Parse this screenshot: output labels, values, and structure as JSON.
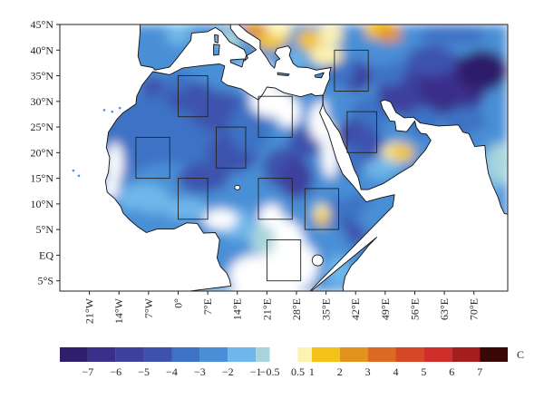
{
  "chart_data": {
    "type": "heatmap",
    "title": "",
    "lon_range": [
      -28,
      78
    ],
    "lat_range": [
      -7,
      45
    ],
    "y_ticks": [
      {
        "value": 45,
        "label": "45°N"
      },
      {
        "value": 40,
        "label": "40°N"
      },
      {
        "value": 35,
        "label": "35°N"
      },
      {
        "value": 30,
        "label": "30°N"
      },
      {
        "value": 25,
        "label": "25°N"
      },
      {
        "value": 20,
        "label": "20°N"
      },
      {
        "value": 15,
        "label": "15°N"
      },
      {
        "value": 10,
        "label": "10°N"
      },
      {
        "value": 5,
        "label": "5°N"
      },
      {
        "value": 0,
        "label": "EQ"
      },
      {
        "value": -5,
        "label": "5°S"
      }
    ],
    "x_ticks": [
      {
        "value": -21,
        "label": "21°W"
      },
      {
        "value": -14,
        "label": "14°W"
      },
      {
        "value": -7,
        "label": "7°W"
      },
      {
        "value": 0,
        "label": "0°"
      },
      {
        "value": 7,
        "label": "7°E"
      },
      {
        "value": 14,
        "label": "14°E"
      },
      {
        "value": 21,
        "label": "21°E"
      },
      {
        "value": 28,
        "label": "28°E"
      },
      {
        "value": 35,
        "label": "35°E"
      },
      {
        "value": 42,
        "label": "42°E"
      },
      {
        "value": 49,
        "label": "49°E"
      },
      {
        "value": 56,
        "label": "56°E"
      },
      {
        "value": 63,
        "label": "63°E"
      },
      {
        "value": 70,
        "label": "70°E"
      }
    ],
    "colorbar": {
      "unit": "C",
      "bins": [
        {
          "from": -8,
          "to": -7,
          "color": "#2f1e6b"
        },
        {
          "from": -7,
          "to": -6,
          "color": "#3a2f8a"
        },
        {
          "from": -6,
          "to": -5,
          "color": "#3e3f9e"
        },
        {
          "from": -5,
          "to": -4,
          "color": "#3d52ad"
        },
        {
          "from": -4,
          "to": -3,
          "color": "#3d72c4"
        },
        {
          "from": -3,
          "to": -2,
          "color": "#4a8fd6"
        },
        {
          "from": -2,
          "to": -1,
          "color": "#6fb7ea"
        },
        {
          "from": -1,
          "to": -0.5,
          "color": "#a8d5dd"
        },
        {
          "from": -0.5,
          "to": 0.5,
          "color": "#ffffff"
        },
        {
          "from": 0.5,
          "to": 1,
          "color": "#fdf3b0"
        },
        {
          "from": 1,
          "to": 2,
          "color": "#f2c21a"
        },
        {
          "from": 2,
          "to": 3,
          "color": "#e2931e"
        },
        {
          "from": 3,
          "to": 4,
          "color": "#dc6a22"
        },
        {
          "from": 4,
          "to": 5,
          "color": "#d44827"
        },
        {
          "from": 5,
          "to": 6,
          "color": "#cf2f2b"
        },
        {
          "from": 6,
          "to": 7,
          "color": "#a51d1d"
        },
        {
          "from": 7,
          "to": 8,
          "color": "#3a0808"
        }
      ],
      "labels": [
        {
          "value": -7,
          "label": "−7"
        },
        {
          "value": -6,
          "label": "−6"
        },
        {
          "value": -5,
          "label": "−5"
        },
        {
          "value": -4,
          "label": "−4"
        },
        {
          "value": -3,
          "label": "−3"
        },
        {
          "value": -2,
          "label": "−2"
        },
        {
          "value": -1,
          "label": "−1"
        },
        {
          "value": -0.5,
          "label": "−0.5"
        },
        {
          "value": 0.5,
          "label": "0.5"
        },
        {
          "value": 1,
          "label": "1"
        },
        {
          "value": 2,
          "label": "2"
        },
        {
          "value": 3,
          "label": "3"
        },
        {
          "value": 4,
          "label": "4"
        },
        {
          "value": 5,
          "label": "5"
        },
        {
          "value": 6,
          "label": "6"
        },
        {
          "value": 7,
          "label": "7"
        }
      ]
    },
    "study_boxes": [
      {
        "lon": [
          0,
          7
        ],
        "lat": [
          27,
          35
        ]
      },
      {
        "lon": [
          -10,
          -2
        ],
        "lat": [
          15,
          23
        ]
      },
      {
        "lon": [
          0,
          7
        ],
        "lat": [
          7,
          15
        ]
      },
      {
        "lon": [
          9,
          16
        ],
        "lat": [
          17,
          25
        ]
      },
      {
        "lon": [
          19,
          27
        ],
        "lat": [
          23,
          31
        ]
      },
      {
        "lon": [
          19,
          27
        ],
        "lat": [
          7,
          15
        ]
      },
      {
        "lon": [
          21,
          29
        ],
        "lat": [
          -5,
          3
        ]
      },
      {
        "lon": [
          30,
          38
        ],
        "lat": [
          5,
          13
        ]
      },
      {
        "lon": [
          37,
          45
        ],
        "lat": [
          32,
          40
        ]
      },
      {
        "lon": [
          40,
          47
        ],
        "lat": [
          20,
          28
        ]
      }
    ]
  }
}
